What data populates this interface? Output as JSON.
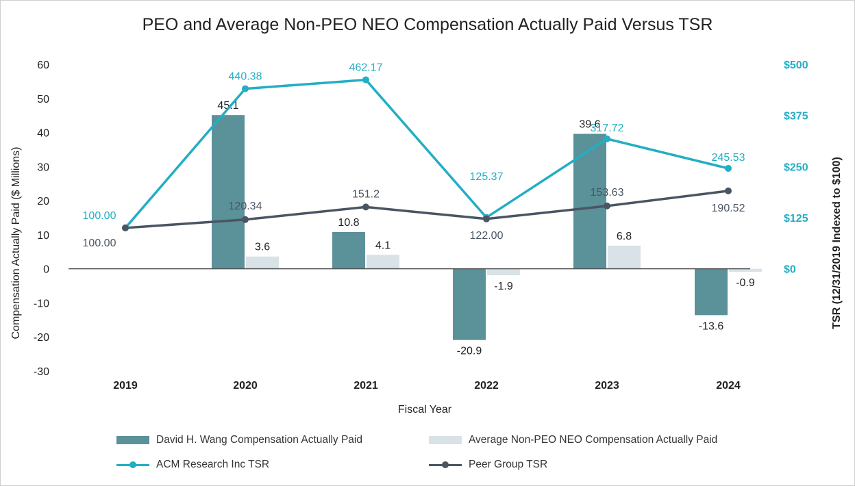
{
  "chart_data": {
    "type": "bar+line",
    "title": "PEO and Average Non-PEO NEO Compensation Actually Paid Versus TSR",
    "xlabel": "Fiscal Year",
    "ylabel": "Compensation Actually Paid ($ Millions)",
    "y2label": "TSR (12/31/2019 Indexed to $100)",
    "categories": [
      "2019",
      "2020",
      "2021",
      "2022",
      "2023",
      "2024"
    ],
    "ylim": [
      -30,
      60
    ],
    "yticks": [
      "60",
      "50",
      "40",
      "30",
      "20",
      "10",
      "0",
      "-10",
      "-20",
      "-30"
    ],
    "y2lim": [
      0,
      500
    ],
    "y2ticks": [
      "$500",
      "$375",
      "$250",
      "$125",
      "$0"
    ],
    "bar_series": [
      {
        "name": "David H. Wang Compensation Actually Paid",
        "values": [
          null,
          45.1,
          10.8,
          -20.9,
          39.6,
          -13.6
        ],
        "labels": [
          "",
          "45.1",
          "10.8",
          "-20.9",
          "39.6",
          "-13.6"
        ]
      },
      {
        "name": "Average Non-PEO NEO Compensation Actually Paid",
        "values": [
          null,
          3.6,
          4.1,
          -1.9,
          6.8,
          -0.9
        ],
        "labels": [
          "",
          "3.6",
          "4.1",
          "-1.9",
          "6.8",
          "-0.9"
        ]
      }
    ],
    "line_series": [
      {
        "name": "ACM Research Inc TSR",
        "values": [
          100.0,
          440.38,
          462.17,
          125.37,
          317.72,
          245.53
        ],
        "labels": [
          "100.00",
          "440.38",
          "462.17",
          "125.37",
          "317.72",
          "245.53"
        ]
      },
      {
        "name": "Peer Group TSR",
        "values": [
          100.0,
          120.34,
          151.2,
          122.0,
          153.63,
          190.52
        ],
        "labels": [
          "100.00",
          "120.34",
          "151.2",
          "122.00",
          "153.63",
          "190.52"
        ]
      }
    ],
    "colors": {
      "bar1": "#5b9199",
      "bar2": "#d9e2e6",
      "line1": "#22aec4",
      "line2": "#4a5563",
      "axis_zero": "#555555",
      "text": "#222222",
      "y2text": "#22aec4"
    }
  },
  "legend": {
    "items": [
      {
        "label": "David H. Wang Compensation Actually Paid"
      },
      {
        "label": "Average Non-PEO NEO Compensation Actually Paid"
      },
      {
        "label": "ACM Research Inc TSR"
      },
      {
        "label": "Peer Group TSR"
      }
    ]
  }
}
